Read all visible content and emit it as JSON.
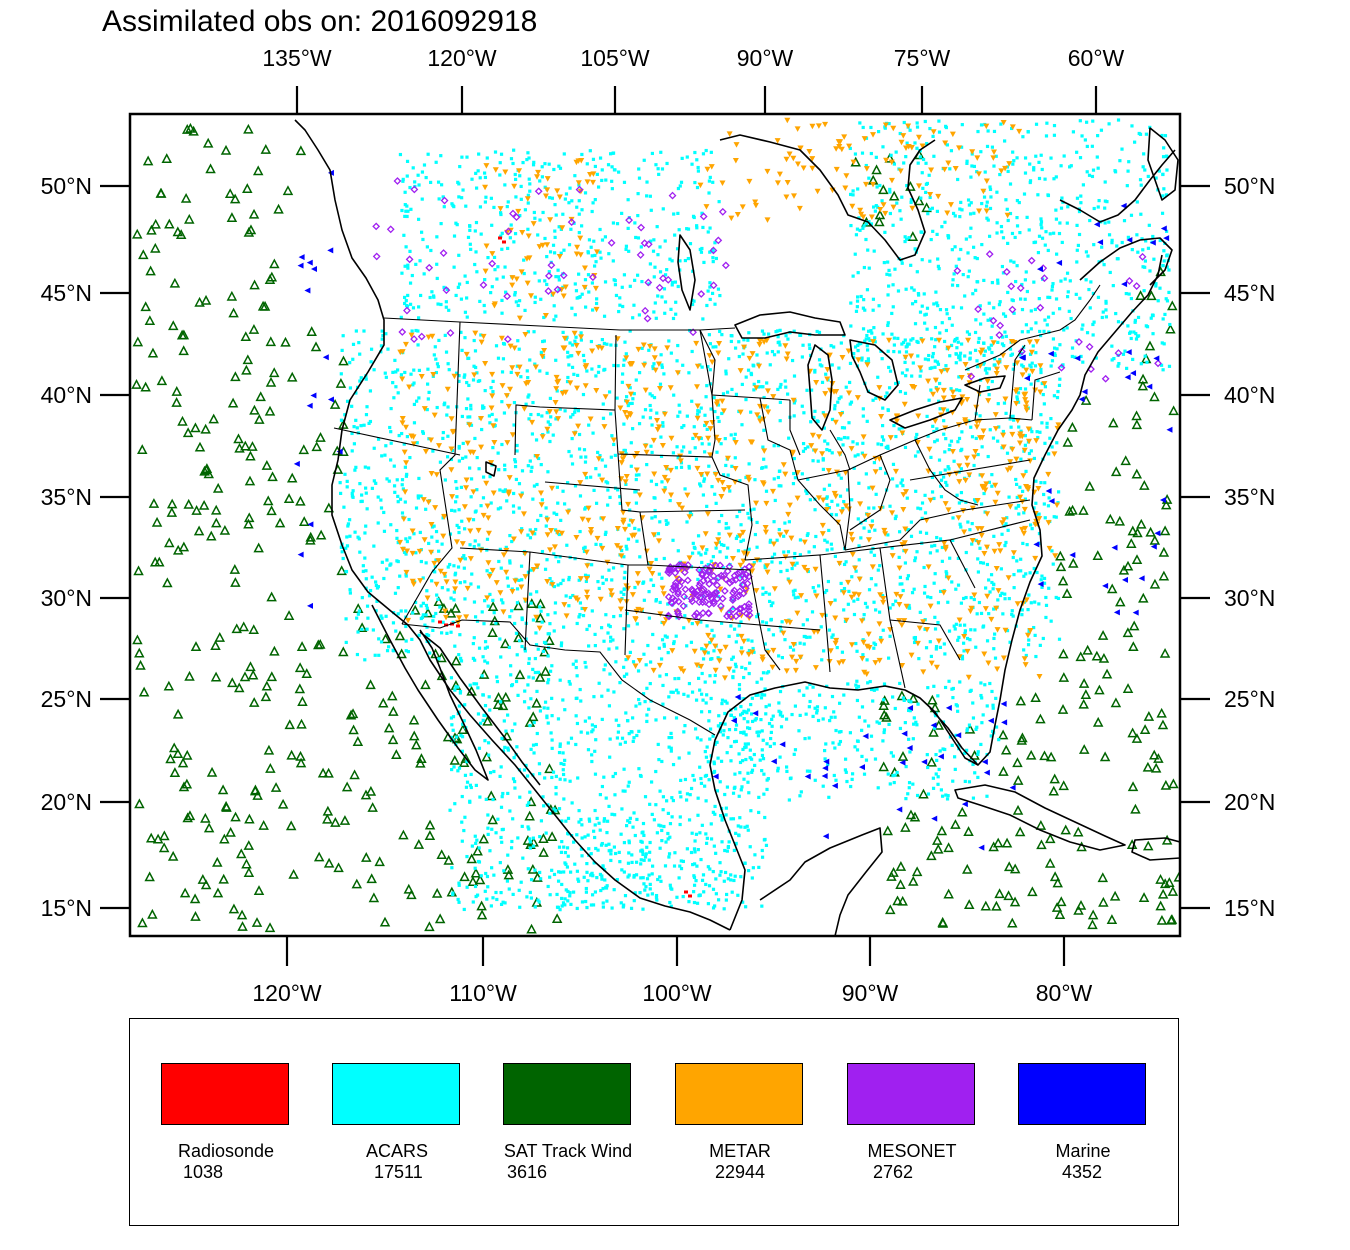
{
  "title": "Assimilated obs on: 2016092918",
  "top_lon_labels": [
    "135°W",
    "120°W",
    "105°W",
    "90°W",
    "75°W",
    "60°W"
  ],
  "bottom_lon_labels": [
    "120°W",
    "110°W",
    "100°W",
    "90°W",
    "80°W"
  ],
  "lat_labels": [
    "50°N",
    "45°N",
    "40°N",
    "35°N",
    "30°N",
    "25°N",
    "20°N",
    "15°N"
  ],
  "colors": {
    "radiosonde": "#ff0000",
    "acars": "#00ffff",
    "sat_track_wind": "#006400",
    "metar": "#ffa500",
    "mesonet": "#a020f0",
    "marine": "#0000ff"
  },
  "legend": [
    {
      "name": "Radiosonde",
      "count": "1038",
      "color": "#ff0000"
    },
    {
      "name": "ACARS",
      "count": "17511",
      "color": "#00ffff"
    },
    {
      "name": "SAT Track Wind",
      "count": "3616",
      "color": "#006400"
    },
    {
      "name": "METAR",
      "count": "22944",
      "color": "#ffa500"
    },
    {
      "name": "MESONET",
      "count": "2762",
      "color": "#a020f0"
    },
    {
      "name": "Marine",
      "count": "4352",
      "color": "#0000ff"
    }
  ]
}
